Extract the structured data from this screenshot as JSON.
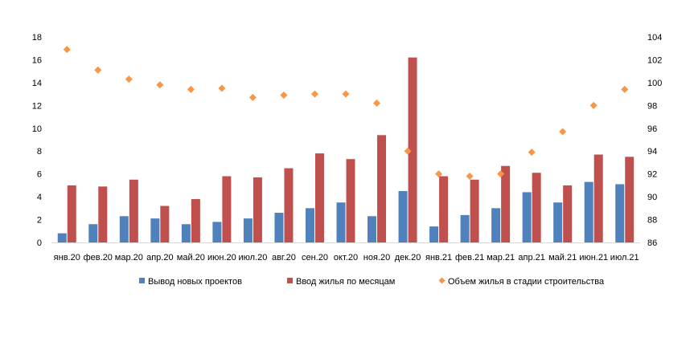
{
  "chart_data": {
    "type": "bar",
    "categories": [
      "янв.20",
      "фев.20",
      "мар.20",
      "апр.20",
      "май.20",
      "июн.20",
      "июл.20",
      "авг.20",
      "сен.20",
      "окт.20",
      "ноя.20",
      "дек.20",
      "янв.21",
      "фев.21",
      "мар.21",
      "апр.21",
      "май.21",
      "июн.21",
      "июл.21"
    ],
    "series": [
      {
        "name": "Вывод новых проектов",
        "type": "bar",
        "axis": "left",
        "color": "#4f81bd",
        "values": [
          0.8,
          1.6,
          2.3,
          2.1,
          1.6,
          1.8,
          2.1,
          2.6,
          3.0,
          3.5,
          2.3,
          4.5,
          1.4,
          2.4,
          3.0,
          4.4,
          3.5,
          5.3,
          5.1
        ]
      },
      {
        "name": "Ввод жилья по месяцам",
        "type": "bar",
        "axis": "left",
        "color": "#c0504d",
        "values": [
          5.0,
          4.9,
          5.5,
          3.2,
          3.8,
          5.8,
          5.7,
          6.5,
          7.8,
          7.3,
          9.4,
          16.2,
          5.8,
          5.5,
          6.7,
          6.1,
          5.0,
          7.7,
          7.5
        ]
      },
      {
        "name": "Объем жилья в стадии строительства",
        "type": "scatter",
        "axis": "right",
        "color": "#f79646",
        "values": [
          102.9,
          101.1,
          100.3,
          99.8,
          99.4,
          99.5,
          98.7,
          98.9,
          99.0,
          99.0,
          98.2,
          94.0,
          92.0,
          91.8,
          92.0,
          93.9,
          95.7,
          98.0,
          99.4
        ]
      }
    ],
    "ylim": [
      0,
      18
    ],
    "yticks": [
      0,
      2,
      4,
      6,
      8,
      10,
      12,
      14,
      16,
      18
    ],
    "y2lim": [
      86,
      104
    ],
    "y2ticks": [
      86,
      88,
      90,
      92,
      94,
      96,
      98,
      100,
      102,
      104
    ],
    "grid": false,
    "legend_position": "bottom"
  }
}
